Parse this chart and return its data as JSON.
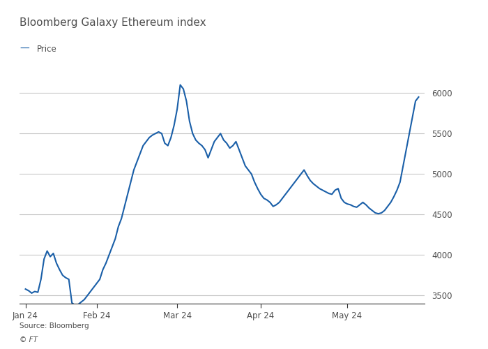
{
  "title": "Bloomberg Galaxy Ethereum index",
  "legend_label": "Price",
  "source": "Source: Bloomberg",
  "footer": "© FT",
  "line_color": "#1a5fa8",
  "background_color": "#ffffff",
  "plot_bg_color": "#ffffff",
  "text_color": "#4d4d4d",
  "title_color": "#4d4d4d",
  "grid_color": "#c8c8c8",
  "axis_color": "#333333",
  "ylim": [
    3400,
    6200
  ],
  "yticks": [
    3500,
    4000,
    4500,
    5000,
    5500,
    6000
  ],
  "xtick_labels": [
    "Jan 24",
    "Feb 24",
    "Mar 24",
    "Apr 24",
    "May 24"
  ],
  "xtick_positions": [
    0,
    24,
    51,
    79,
    108
  ],
  "xlim_end": 132,
  "prices": [
    3580,
    3560,
    3530,
    3550,
    3540,
    3700,
    3950,
    4050,
    3980,
    4020,
    3900,
    3820,
    3750,
    3720,
    3700,
    3410,
    3380,
    3390,
    3420,
    3450,
    3500,
    3550,
    3600,
    3650,
    3700,
    3820,
    3900,
    4000,
    4100,
    4200,
    4350,
    4450,
    4600,
    4750,
    4900,
    5050,
    5150,
    5250,
    5350,
    5400,
    5450,
    5480,
    5500,
    5520,
    5500,
    5380,
    5350,
    5450,
    5600,
    5800,
    6100,
    6050,
    5900,
    5650,
    5500,
    5420,
    5380,
    5350,
    5300,
    5200,
    5300,
    5400,
    5450,
    5500,
    5420,
    5380,
    5320,
    5350,
    5400,
    5300,
    5200,
    5100,
    5050,
    5000,
    4900,
    4820,
    4750,
    4700,
    4680,
    4650,
    4600,
    4620,
    4650,
    4700,
    4750,
    4800,
    4850,
    4900,
    4950,
    5000,
    5050,
    4980,
    4920,
    4880,
    4850,
    4820,
    4800,
    4780,
    4760,
    4750,
    4800,
    4820,
    4700,
    4650,
    4630,
    4620,
    4600,
    4590,
    4620,
    4650,
    4620,
    4580,
    4550,
    4520,
    4510,
    4520,
    4550,
    4600,
    4650,
    4720,
    4800,
    4900,
    5100,
    5300,
    5500,
    5700,
    5900,
    5950
  ]
}
